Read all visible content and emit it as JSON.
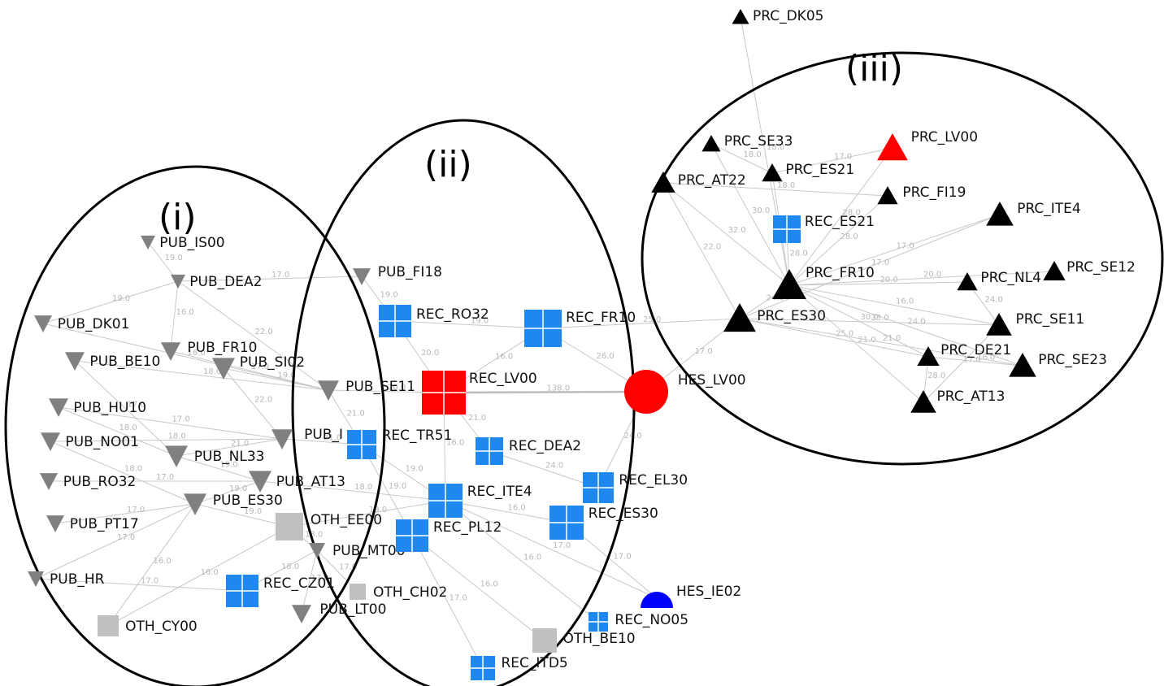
{
  "clusters": [
    "(i)",
    "(ii)",
    "(iii)"
  ],
  "colors": {
    "pub": "#808080",
    "rec": "#1e88f0",
    "oth": "#c0c0c0",
    "prc": "#000000",
    "highlight": "#ff0000",
    "hes_ie": "#0000ff",
    "edge": "#c8c8c8"
  },
  "nodes": [
    {
      "id": "PUB_IS00",
      "label": "PUB_IS00",
      "kind": "pub"
    },
    {
      "id": "PUB_DEA2",
      "label": "PUB_DEA2",
      "kind": "pub"
    },
    {
      "id": "PUB_DK01",
      "label": "PUB_DK01",
      "kind": "pub"
    },
    {
      "id": "PUB_BE10",
      "label": "PUB_BE10",
      "kind": "pub"
    },
    {
      "id": "PUB_FR10",
      "label": "PUB_FR10",
      "kind": "pub"
    },
    {
      "id": "PUB_SI02",
      "label": "PUB_SI02",
      "kind": "pub"
    },
    {
      "id": "PUB_HU10",
      "label": "PUB_HU10",
      "kind": "pub"
    },
    {
      "id": "PUB_NO01",
      "label": "PUB_NO01",
      "kind": "pub"
    },
    {
      "id": "PUB_NL33",
      "label": "PUB_NL33",
      "kind": "pub"
    },
    {
      "id": "PUB_RO32",
      "label": "PUB_RO32",
      "kind": "pub"
    },
    {
      "id": "PUB_AT13",
      "label": "PUB_AT13",
      "kind": "pub"
    },
    {
      "id": "PUB_ES30",
      "label": "PUB_ES30",
      "kind": "pub"
    },
    {
      "id": "PUB_PT17",
      "label": "PUB_PT17",
      "kind": "pub"
    },
    {
      "id": "PUB_HR",
      "label": "PUB_HR",
      "kind": "pub"
    },
    {
      "id": "PUB_FI18",
      "label": "PUB_FI18",
      "kind": "pub"
    },
    {
      "id": "PUB_SE11",
      "label": "PUB_SE11",
      "kind": "pub"
    },
    {
      "id": "PUB_I",
      "label": "PUB_I",
      "kind": "pub"
    },
    {
      "id": "PUB_MT00",
      "label": "PUB_MT00",
      "kind": "pub"
    },
    {
      "id": "PUB_LT00",
      "label": "PUB_LT00",
      "kind": "pub"
    },
    {
      "id": "OTH_EE00",
      "label": "OTH_EE00",
      "kind": "oth"
    },
    {
      "id": "OTH_CH02",
      "label": "OTH_CH02",
      "kind": "oth"
    },
    {
      "id": "OTH_CY00",
      "label": "OTH_CY00",
      "kind": "oth"
    },
    {
      "id": "OTH_BE10",
      "label": "OTH_BE10",
      "kind": "oth"
    },
    {
      "id": "REC_RO32",
      "label": "REC_RO32",
      "kind": "rec"
    },
    {
      "id": "REC_FR10",
      "label": "REC_FR10",
      "kind": "rec"
    },
    {
      "id": "REC_LV00",
      "label": "REC_LV00",
      "kind": "rec_hl"
    },
    {
      "id": "REC_TR51",
      "label": "REC_TR51",
      "kind": "rec"
    },
    {
      "id": "REC_DEA2",
      "label": "REC_DEA2",
      "kind": "rec"
    },
    {
      "id": "REC_ITE4",
      "label": "REC_ITE4",
      "kind": "rec"
    },
    {
      "id": "REC_EL30",
      "label": "REC_EL30",
      "kind": "rec"
    },
    {
      "id": "REC_ES30",
      "label": "REC_ES30",
      "kind": "rec"
    },
    {
      "id": "REC_PL12",
      "label": "REC_PL12",
      "kind": "rec"
    },
    {
      "id": "REC_CZ01",
      "label": "REC_CZ01",
      "kind": "rec"
    },
    {
      "id": "REC_NO05",
      "label": "REC_NO05",
      "kind": "rec"
    },
    {
      "id": "REC_ITD5",
      "label": "REC_ITD5",
      "kind": "rec"
    },
    {
      "id": "REC_ES21",
      "label": "REC_ES21",
      "kind": "rec"
    },
    {
      "id": "HES_LV00",
      "label": "HES_LV00",
      "kind": "hes_hl"
    },
    {
      "id": "HES_IE02",
      "label": "HES_IE02",
      "kind": "hes_ie"
    },
    {
      "id": "PRC_DK05",
      "label": "PRC_DK05",
      "kind": "prc"
    },
    {
      "id": "PRC_SE33",
      "label": "PRC_SE33",
      "kind": "prc"
    },
    {
      "id": "PRC_LV00",
      "label": "PRC_LV00",
      "kind": "prc_hl"
    },
    {
      "id": "PRC_AT22",
      "label": "PRC_AT22",
      "kind": "prc"
    },
    {
      "id": "PRC_ES21",
      "label": "PRC_ES21",
      "kind": "prc"
    },
    {
      "id": "PRC_FI19",
      "label": "PRC_FI19",
      "kind": "prc"
    },
    {
      "id": "PRC_ITE4",
      "label": "PRC_ITE4",
      "kind": "prc"
    },
    {
      "id": "PRC_FR10",
      "label": "PRC_FR10",
      "kind": "prc"
    },
    {
      "id": "PRC_NL4",
      "label": "PRC_NL4",
      "kind": "prc"
    },
    {
      "id": "PRC_SE12",
      "label": "PRC_SE12",
      "kind": "prc"
    },
    {
      "id": "PRC_ES30",
      "label": "PRC_ES30",
      "kind": "prc"
    },
    {
      "id": "PRC_SE11",
      "label": "PRC_SE11",
      "kind": "prc"
    },
    {
      "id": "PRC_DE21",
      "label": "PRC_DE21",
      "kind": "prc"
    },
    {
      "id": "PRC_SE23",
      "label": "PRC_SE23",
      "kind": "prc"
    },
    {
      "id": "PRC_AT13",
      "label": "PRC_AT13",
      "kind": "prc"
    }
  ],
  "edges": [
    {
      "from": "REC_LV00",
      "to": "HES_LV00",
      "weight": "138.0",
      "heavy": true
    },
    {
      "from": "REC_FR10",
      "to": "HES_LV00",
      "weight": "26.0"
    },
    {
      "from": "REC_FR10",
      "to": "REC_LV00",
      "weight": "16.0"
    },
    {
      "from": "REC_RO32",
      "to": "REC_LV00",
      "weight": "20.0"
    },
    {
      "from": "REC_LV00",
      "to": "REC_DEA2",
      "weight": "21.0"
    },
    {
      "from": "REC_LV00",
      "to": "REC_ITE4",
      "weight": "16.0"
    },
    {
      "from": "REC_DEA2",
      "to": "REC_EL30",
      "weight": "24.0"
    },
    {
      "from": "REC_ITE4",
      "to": "REC_ES30",
      "weight": "16.0"
    },
    {
      "from": "REC_ITE4",
      "to": "REC_PL12",
      "weight": "18.0"
    },
    {
      "from": "REC_TR51",
      "to": "REC_ITE4",
      "weight": "19.0"
    },
    {
      "from": "REC_PL12",
      "to": "REC_ITD5",
      "weight": "17.0"
    },
    {
      "from": "REC_ITE4",
      "to": "HES_IE02",
      "weight": "17.0"
    },
    {
      "from": "REC_ES30",
      "to": "HES_IE02",
      "weight": "17.0"
    },
    {
      "from": "REC_EL30",
      "to": "HES_LV00",
      "weight": "24.0"
    },
    {
      "from": "REC_ITE4",
      "to": "REC_NO05",
      "weight": "16.0"
    },
    {
      "from": "REC_PL12",
      "to": "OTH_BE10",
      "weight": "16.0"
    },
    {
      "from": "REC_FR10",
      "to": "PRC_ES30",
      "weight": "25.0"
    },
    {
      "from": "REC_RO32",
      "to": "PUB_FI18",
      "weight": "19.0"
    },
    {
      "from": "REC_RO32",
      "to": "REC_FR10",
      "weight": "19.0"
    },
    {
      "from": "PUB_FI18",
      "to": "PUB_DEA2",
      "weight": "17.0"
    },
    {
      "from": "PUB_DEA2",
      "to": "PUB_IS00",
      "weight": "19.0"
    },
    {
      "from": "PUB_DEA2",
      "to": "PUB_FR10",
      "weight": "16.0"
    },
    {
      "from": "PUB_DEA2",
      "to": "PUB_DK01",
      "weight": "19.0"
    },
    {
      "from": "PUB_DEA2",
      "to": "PUB_SE11",
      "weight": "22.0"
    },
    {
      "from": "PUB_FR10",
      "to": "PUB_SE11",
      "weight": "17.0"
    },
    {
      "from": "PUB_BE10",
      "to": "PUB_SE11",
      "weight": "18.0"
    },
    {
      "from": "PUB_SI02",
      "to": "PUB_SE11",
      "weight": "19.0"
    },
    {
      "from": "PUB_SI02",
      "to": "PUB_I",
      "weight": "22.0"
    },
    {
      "from": "PUB_HU10",
      "to": "PUB_I",
      "weight": "17.0"
    },
    {
      "from": "PUB_NO01",
      "to": "PUB_I",
      "weight": "18.0"
    },
    {
      "from": "PUB_NL33",
      "to": "PUB_I",
      "weight": "21.0"
    },
    {
      "from": "PUB_NL33",
      "to": "PUB_AT13",
      "weight": "19.0"
    },
    {
      "from": "PUB_RO32",
      "to": "PUB_AT13",
      "weight": "17.0"
    },
    {
      "from": "PUB_ES30",
      "to": "PUB_AT13",
      "weight": "19.0"
    },
    {
      "from": "PUB_ES30",
      "to": "OTH_EE00",
      "weight": "19.0"
    },
    {
      "from": "PUB_PT17",
      "to": "PUB_ES30",
      "weight": "17.0"
    },
    {
      "from": "PUB_HR",
      "to": "PUB_ES30",
      "weight": "17.0"
    },
    {
      "from": "PUB_HR",
      "to": "REC_CZ01",
      "weight": "17.0"
    },
    {
      "from": "OTH_CY00",
      "to": "PUB_ES30",
      "weight": "16.0"
    },
    {
      "from": "OTH_CY00",
      "to": "OTH_EE00",
      "weight": "16.0"
    },
    {
      "from": "PUB_MT00",
      "to": "OTH_EE00",
      "weight": "18.0"
    },
    {
      "from": "PUB_MT00",
      "to": "REC_CZ01",
      "weight": "18.0"
    },
    {
      "from": "PUB_LT00",
      "to": "PUB_MT00",
      "weight": "17.0"
    },
    {
      "from": "OTH_CH02",
      "to": "PUB_MT00",
      "weight": "17.0"
    },
    {
      "from": "PUB_SE11",
      "to": "REC_LV00",
      "weight": "20.0"
    },
    {
      "from": "PUB_SE11",
      "to": "REC_TR51",
      "weight": "21.0"
    },
    {
      "from": "PUB_I",
      "to": "REC_TR51",
      "weight": "21.0"
    },
    {
      "from": "PUB_AT13",
      "to": "REC_ITE4",
      "weight": "18.0"
    },
    {
      "from": "REC_TR51",
      "to": "REC_PL12",
      "weight": "19.0"
    },
    {
      "from": "OTH_EE00",
      "to": "REC_ITE4",
      "weight": "19.0"
    },
    {
      "from": "PUB_DK01",
      "to": "PUB_SE11",
      "weight": "16.0"
    },
    {
      "from": "PUB_BE10",
      "to": "PUB_NL33",
      "weight": "17.0"
    },
    {
      "from": "PUB_HU10",
      "to": "PUB_NL33",
      "weight": "18.0"
    },
    {
      "from": "PUB_NO01",
      "to": "PUB_ES30",
      "weight": "18.0"
    },
    {
      "from": "PRC_DK05",
      "to": "PRC_FR10",
      "weight": "18.0"
    },
    {
      "from": "PRC_SE33",
      "to": "PRC_FR10",
      "weight": "30.0"
    },
    {
      "from": "PRC_SE33",
      "to": "PRC_ES21",
      "weight": "18.0"
    },
    {
      "from": "PRC_LV00",
      "to": "PRC_ES21",
      "weight": "17.0"
    },
    {
      "from": "PRC_LV00",
      "to": "PRC_FR10",
      "weight": "28.0"
    },
    {
      "from": "PRC_AT22",
      "to": "PRC_FR10",
      "weight": "32.0"
    },
    {
      "from": "PRC_AT22",
      "to": "PRC_ES30",
      "weight": "22.0"
    },
    {
      "from": "PRC_AT22",
      "to": "PRC_FI19",
      "weight": "18.0"
    },
    {
      "from": "PRC_ES21",
      "to": "PRC_FR10",
      "weight": "37.0"
    },
    {
      "from": "PRC_FI19",
      "to": "PRC_FR10",
      "weight": "28.0"
    },
    {
      "from": "PRC_ITE4",
      "to": "PRC_FR10",
      "weight": "17.0"
    },
    {
      "from": "PRC_NL4",
      "to": "PRC_FR10",
      "weight": "20.0"
    },
    {
      "from": "PRC_SE12",
      "to": "PRC_FR10",
      "weight": "20.0"
    },
    {
      "from": "PRC_ES30",
      "to": "PRC_FR10",
      "weight": "24.0"
    },
    {
      "from": "PRC_ES30",
      "to": "PRC_SE11",
      "weight": "33.0"
    },
    {
      "from": "PRC_ES30",
      "to": "PRC_DE21",
      "weight": "25.0"
    },
    {
      "from": "PRC_SE11",
      "to": "PRC_FR10",
      "weight": "16.0"
    },
    {
      "from": "PRC_DE21",
      "to": "PRC_FR10",
      "weight": "30.0"
    },
    {
      "from": "PRC_SE23",
      "to": "PRC_FR10",
      "weight": "24.0"
    },
    {
      "from": "PRC_AT13",
      "to": "PRC_DE21",
      "weight": "28.0"
    },
    {
      "from": "PRC_AT13",
      "to": "PRC_FR10",
      "weight": "21.0"
    },
    {
      "from": "REC_ES21",
      "to": "PRC_FR10",
      "weight": "28.0"
    },
    {
      "from": "PRC_DE21",
      "to": "PRC_SE23",
      "weight": "16.0"
    },
    {
      "from": "PRC_ES30",
      "to": "PRC_SE23",
      "weight": "21.0"
    },
    {
      "from": "HES_LV00",
      "to": "PRC_ES30",
      "weight": "17.0"
    },
    {
      "from": "PRC_NL4",
      "to": "PRC_SE11",
      "weight": "24.0"
    },
    {
      "from": "PRC_ITE4",
      "to": "PRC_ES30",
      "weight": "17.0"
    },
    {
      "from": "PRC_AT13",
      "to": "PRC_SE11",
      "weight": "17.0"
    }
  ]
}
